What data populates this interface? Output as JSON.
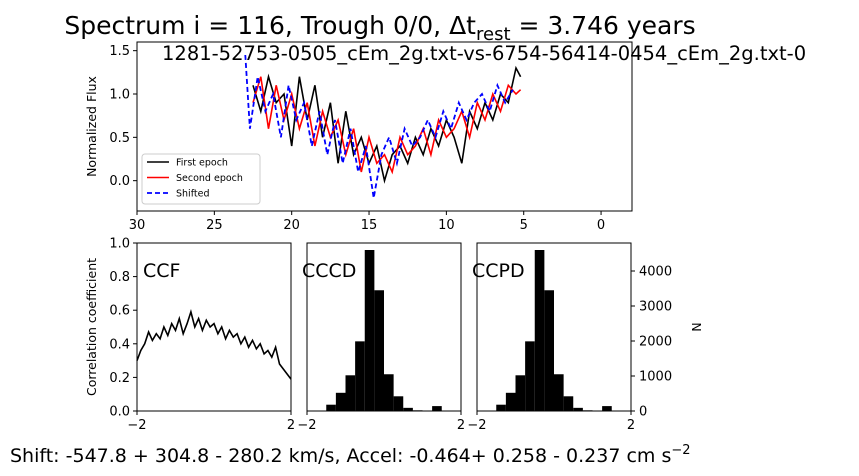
{
  "figure": {
    "title_prefix": "Spectrum i = 116, Trough 0/0, Δt",
    "title_sub": "rest",
    "title_suffix": " = 3.746 years",
    "subtitle": "1281-52753-0505_cEm_2g.txt-vs-6754-56414-0454_cEm_2g.txt-0",
    "footer_prefix": "Shift: -547.8 + 304.8 - 280.2 km/s, Accel: -0.464+ 0.258 - 0.237 cm s",
    "footer_sup": "−2"
  },
  "colors": {
    "first": "#000000",
    "second": "#ff0000",
    "shifted": "#0000ff",
    "hist": "#000000"
  },
  "chart_data": [
    {
      "id": "spectrum",
      "type": "line",
      "title": "",
      "xlabel": "",
      "ylabel": "Normalized Flux",
      "xlim": [
        30,
        -2
      ],
      "ylim": [
        -0.35,
        1.6
      ],
      "xticks": [
        30,
        25,
        20,
        15,
        10,
        5,
        0
      ],
      "yticks": [
        0.0,
        0.5,
        1.0,
        1.5
      ],
      "ytick_labels": [
        "0.0",
        "0.5",
        "1.0",
        "1.5"
      ],
      "legend": {
        "placement": "lower-left",
        "entries": [
          "First epoch",
          "Second epoch",
          "Shifted"
        ]
      },
      "series": [
        {
          "name": "First epoch",
          "style": "solid",
          "x": [
            22.5,
            22.0,
            21.5,
            21.0,
            20.5,
            20.0,
            19.5,
            19.0,
            18.5,
            18.0,
            17.5,
            17.0,
            16.5,
            16.0,
            15.5,
            15.0,
            14.5,
            14.0,
            13.5,
            13.0,
            12.5,
            12.0,
            11.5,
            11.0,
            10.5,
            10.0,
            9.5,
            9.0,
            8.5,
            8.0,
            7.5,
            7.0,
            6.5,
            6.0,
            5.5,
            5.2
          ],
          "y": [
            1.1,
            0.8,
            1.2,
            0.9,
            1.0,
            0.4,
            1.2,
            0.7,
            1.1,
            0.5,
            0.9,
            0.2,
            0.8,
            0.3,
            0.5,
            0.2,
            0.4,
            0.0,
            0.3,
            0.4,
            0.2,
            0.5,
            0.3,
            0.6,
            0.4,
            0.7,
            0.5,
            0.2,
            0.8,
            0.6,
            0.9,
            0.7,
            1.0,
            0.9,
            1.3,
            1.2
          ]
        },
        {
          "name": "Second epoch",
          "style": "solid",
          "x": [
            22.5,
            22.0,
            21.5,
            21.0,
            20.5,
            20.0,
            19.5,
            19.0,
            18.5,
            18.0,
            17.5,
            17.0,
            16.5,
            16.0,
            15.5,
            15.0,
            14.5,
            14.0,
            13.5,
            13.0,
            12.5,
            12.0,
            11.5,
            11.0,
            10.5,
            10.0,
            9.5,
            9.0,
            8.5,
            8.0,
            7.5,
            7.0,
            6.5,
            6.0,
            5.5,
            5.2
          ],
          "y": [
            0.9,
            1.2,
            0.6,
            1.1,
            0.7,
            1.0,
            0.6,
            0.9,
            0.4,
            0.8,
            0.5,
            0.7,
            0.3,
            0.6,
            0.1,
            0.5,
            0.2,
            0.3,
            0.1,
            0.5,
            0.3,
            0.4,
            0.6,
            0.3,
            0.7,
            0.5,
            0.6,
            0.8,
            0.5,
            0.9,
            0.7,
            1.0,
            0.8,
            1.1,
            1.0,
            1.05
          ]
        },
        {
          "name": "Shifted",
          "style": "dashed",
          "x": [
            23.0,
            22.7,
            22.2,
            21.7,
            21.2,
            20.7,
            20.2,
            19.7,
            19.2,
            18.7,
            18.2,
            17.7,
            17.2,
            16.7,
            16.2,
            15.7,
            15.2,
            14.7,
            14.2,
            13.7,
            13.2,
            12.7,
            12.2,
            11.7,
            11.2,
            10.7,
            10.2,
            9.7,
            9.2,
            8.7,
            8.2,
            7.7,
            7.2,
            6.7,
            6.2,
            5.7
          ],
          "y": [
            1.45,
            0.6,
            1.2,
            0.8,
            1.0,
            0.5,
            1.1,
            0.7,
            0.9,
            0.4,
            0.8,
            0.3,
            0.7,
            0.2,
            0.6,
            0.1,
            0.4,
            -0.2,
            0.3,
            0.5,
            0.2,
            0.6,
            0.4,
            0.5,
            0.7,
            0.5,
            0.8,
            0.6,
            0.9,
            0.7,
            0.9,
            1.0,
            0.8,
            1.1,
            0.9,
            1.05
          ]
        }
      ]
    },
    {
      "id": "ccf",
      "type": "line",
      "title": "",
      "panel_label": "CCF",
      "xlabel": "",
      "ylabel": "Correlation coefficient",
      "xlim": [
        -2,
        2
      ],
      "ylim": [
        0,
        1
      ],
      "xticks": [
        -2,
        2
      ],
      "yticks": [
        0.0,
        0.2,
        0.4,
        0.6,
        0.8,
        1.0
      ],
      "ytick_labels": [
        "0.0",
        "0.2",
        "0.4",
        "0.6",
        "0.8",
        "1.0"
      ],
      "series": [
        {
          "x": [
            -2.0,
            -1.9,
            -1.8,
            -1.7,
            -1.6,
            -1.5,
            -1.4,
            -1.3,
            -1.2,
            -1.1,
            -1.0,
            -0.9,
            -0.8,
            -0.7,
            -0.6,
            -0.5,
            -0.4,
            -0.3,
            -0.2,
            -0.1,
            0.0,
            0.1,
            0.2,
            0.3,
            0.4,
            0.5,
            0.6,
            0.7,
            0.8,
            0.9,
            1.0,
            1.1,
            1.2,
            1.3,
            1.4,
            1.5,
            1.6,
            1.7,
            1.8,
            1.9,
            2.0
          ],
          "y": [
            0.3,
            0.36,
            0.4,
            0.47,
            0.42,
            0.46,
            0.43,
            0.5,
            0.45,
            0.52,
            0.48,
            0.55,
            0.46,
            0.52,
            0.59,
            0.5,
            0.55,
            0.48,
            0.54,
            0.5,
            0.52,
            0.46,
            0.5,
            0.43,
            0.48,
            0.44,
            0.46,
            0.4,
            0.44,
            0.38,
            0.42,
            0.37,
            0.4,
            0.34,
            0.36,
            0.32,
            0.38,
            0.28,
            0.25,
            0.22,
            0.19
          ]
        }
      ]
    },
    {
      "id": "cccd",
      "type": "bar",
      "title": "",
      "panel_label": "CCCD",
      "xlim": [
        -2,
        2
      ],
      "ylim": [
        0,
        4800
      ],
      "xticks": [
        -2,
        2
      ],
      "bin_width": 0.25,
      "bin_left": [
        -1.5,
        -1.25,
        -1.0,
        -0.75,
        -0.5,
        -0.25,
        0.0,
        0.25,
        0.5,
        0.75,
        1.0,
        1.25
      ],
      "counts": [
        180,
        520,
        1020,
        1990,
        4600,
        3450,
        1050,
        420,
        90,
        20,
        0,
        140
      ]
    },
    {
      "id": "ccpd",
      "type": "bar",
      "title": "",
      "panel_label": "CCPD",
      "xlabel": "",
      "ylabel": "N",
      "xlim": [
        -2,
        2
      ],
      "ylim": [
        0,
        4800
      ],
      "xticks": [
        -2,
        2
      ],
      "yticks": [
        0,
        1000,
        2000,
        3000,
        4000
      ],
      "ytick_labels": [
        "0",
        "1000",
        "2000",
        "3000",
        "4000"
      ],
      "bin_width": 0.25,
      "bin_left": [
        -1.5,
        -1.25,
        -1.0,
        -0.75,
        -0.5,
        -0.25,
        0.0,
        0.25,
        0.5,
        0.75,
        1.0,
        1.25
      ],
      "counts": [
        180,
        520,
        1020,
        1990,
        4600,
        3450,
        1050,
        420,
        90,
        20,
        0,
        140
      ]
    }
  ]
}
